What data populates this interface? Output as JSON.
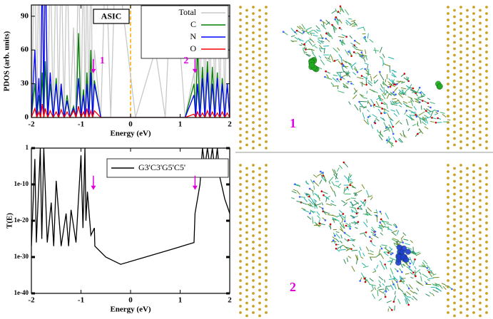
{
  "chart_data": [
    {
      "type": "line",
      "title": "ASIC",
      "xlabel": "Energy (eV)",
      "ylabel": "PDOS (arb. units)",
      "x": [
        -2,
        -1.93,
        -1.89,
        -1.85,
        -1.815,
        -1.78,
        -1.75,
        -1.72,
        -1.67,
        -1.62,
        -1.56,
        -1.5,
        -1.45,
        -1.4,
        -1.34,
        -1.28,
        -1.22,
        -1.15,
        -1.1,
        -1.05,
        -1.0,
        -0.95,
        -0.915,
        -0.88,
        -0.84,
        -0.8,
        -0.765,
        -0.73,
        -0.6,
        -0.5,
        -0.4,
        -0.3,
        0.1,
        0.5,
        0.7,
        0.85,
        1.1,
        1.28,
        1.315,
        1.35,
        1.4,
        1.45,
        1.5,
        1.55,
        1.6,
        1.65,
        1.7,
        1.75,
        1.8,
        1.85,
        1.9,
        1.95,
        2
      ],
      "series": [
        {
          "name": "Total",
          "color": "#c8c8c8",
          "values": [
            0,
            150,
            0,
            150,
            0,
            150,
            0,
            150,
            0,
            150,
            0,
            150,
            0,
            150,
            0,
            150,
            0,
            80,
            0,
            150,
            0,
            150,
            0,
            150,
            0,
            150,
            0,
            60,
            0,
            150,
            0,
            150,
            0,
            60,
            0,
            150,
            0,
            40,
            0,
            150,
            0,
            150,
            0,
            150,
            0,
            150,
            0,
            150,
            0,
            150,
            0,
            150,
            0
          ]
        },
        {
          "name": "C",
          "color": "#008000",
          "values": [
            0,
            30,
            0,
            20,
            0,
            40,
            0,
            50,
            0,
            30,
            0,
            35,
            0,
            25,
            0,
            20,
            0,
            10,
            0,
            75,
            0,
            25,
            0,
            40,
            0,
            60,
            0,
            33,
            0,
            0,
            0,
            0,
            0,
            0,
            0,
            0,
            0,
            30,
            0,
            65,
            0,
            45,
            0,
            50,
            0,
            45,
            0,
            40,
            0,
            35,
            0,
            30,
            0
          ]
        },
        {
          "name": "N",
          "color": "#0000ff",
          "values": [
            0,
            60,
            0,
            35,
            0,
            150,
            0,
            150,
            0,
            40,
            0,
            30,
            0,
            30,
            0,
            15,
            0,
            8,
            0,
            35,
            0,
            20,
            0,
            30,
            0,
            40,
            0,
            30,
            0,
            0,
            0,
            0,
            0,
            0,
            0,
            0,
            0,
            20,
            0,
            30,
            0,
            35,
            0,
            40,
            0,
            30,
            0,
            35,
            0,
            30,
            0,
            30,
            0
          ]
        },
        {
          "name": "O",
          "color": "#ff0000",
          "values": [
            0,
            8,
            0,
            5,
            0,
            12,
            0,
            8,
            0,
            6,
            0,
            5,
            0,
            7,
            0,
            5,
            0,
            6,
            0,
            10,
            0,
            5,
            0,
            8,
            0,
            6,
            0,
            6,
            0,
            0,
            0,
            0,
            0,
            0,
            0,
            0,
            0,
            3,
            0,
            5,
            0,
            4,
            0,
            6,
            0,
            5,
            0,
            4,
            0,
            5,
            0,
            4,
            0
          ]
        }
      ],
      "xlim": [
        -2,
        2
      ],
      "ylim": [
        0,
        100
      ],
      "xticks": [
        -2,
        -1,
        0,
        1,
        2
      ],
      "yticks": [
        0,
        30,
        60,
        90
      ],
      "fermi_level": 0,
      "fermi_color": "#ffa500",
      "arrows": [
        {
          "x": -0.75,
          "label": "1"
        },
        {
          "x": 1.3,
          "label": "2"
        }
      ],
      "arrow_color": "#e000e0",
      "legend": "upper right"
    },
    {
      "type": "line",
      "xlabel": "Energy (eV)",
      "ylabel": "T(E)",
      "yscale": "log",
      "x": [
        -2,
        -1.93,
        -1.9,
        -1.82,
        -1.79,
        -1.75,
        -1.68,
        -1.6,
        -1.55,
        -1.5,
        -1.4,
        -1.3,
        -1.25,
        -1.2,
        -1.1,
        -1.0,
        -0.96,
        -0.92,
        -0.9,
        -0.87,
        -0.8,
        -0.73,
        -0.72,
        -0.5,
        -0.2,
        0.3,
        0.8,
        1.28,
        1.3,
        1.4,
        1.45,
        1.5,
        1.55,
        1.6,
        1.65,
        1.7,
        1.75,
        1.8,
        1.9,
        2
      ],
      "series": [
        {
          "name": "G3'C3'G5'C5'",
          "color": "#000000",
          "values": [
            1e-27,
            0.001,
            1e-26,
            1,
            1e-25,
            1,
            1e-26,
            1e-15,
            1e-27,
            1e-09,
            1e-27,
            1e-18,
            1e-27,
            1e-17,
            1e-26,
            0.01,
            1e-22,
            1,
            1e-20,
            1e-12,
            1e-24,
            1e-22,
            1e-27,
            1e-30,
            1e-32,
            1e-30,
            1e-28,
            1e-26,
            1e-18,
            1e-10,
            1,
            1e-05,
            1,
            1e-05,
            1,
            1e-06,
            1,
            1e-08,
            1e-14,
            1e-18
          ]
        }
      ],
      "xlim": [
        -2,
        2
      ],
      "ylim": [
        1e-40,
        1
      ],
      "xticks": [
        -2,
        -1,
        0,
        1,
        2
      ],
      "yticks": [
        1,
        {
          "value": 1e-10,
          "label": "1e-10"
        },
        {
          "value": 1e-20,
          "label": "1e-20"
        },
        {
          "value": 1e-30,
          "label": "1e-30"
        },
        {
          "value": 1e-40,
          "label": "1e-40"
        }
      ],
      "arrows": [
        {
          "x": -0.75
        },
        {
          "x": 1.3
        }
      ],
      "arrow_color": "#e000e0",
      "legend": "upper right"
    }
  ],
  "structures": [
    {
      "label": "1"
    },
    {
      "label": "2"
    }
  ]
}
